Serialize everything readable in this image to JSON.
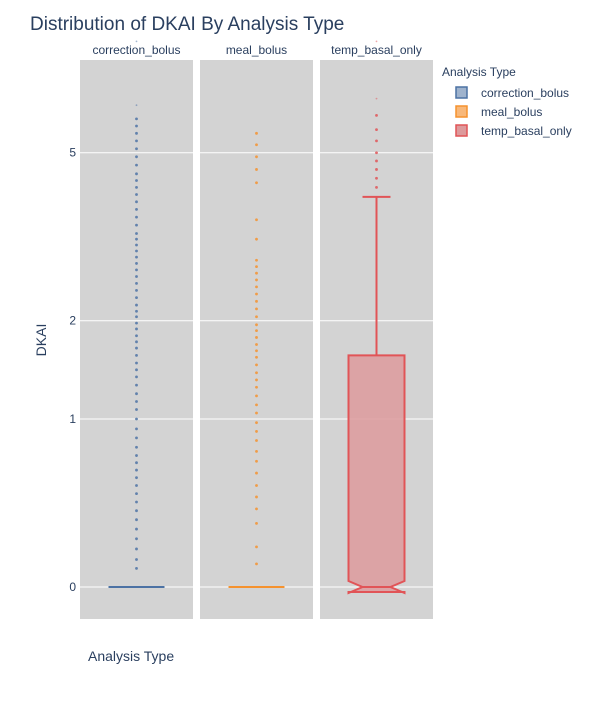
{
  "chart_data": {
    "type": "box",
    "title": "Distribution of DKAI By Analysis Type",
    "xlabel": "Analysis Type",
    "ylabel": "DKAI",
    "y_scale": "symlog",
    "yticks": [
      0,
      1,
      2,
      5
    ],
    "ylim": [
      -0.1,
      10.5
    ],
    "grid": true,
    "facet_titles": [
      "correction_bolus",
      "meal_bolus",
      "temp_basal_only"
    ],
    "legend": {
      "title": "Analysis Type",
      "placement": "top-right",
      "entries": [
        "correction_bolus",
        "meal_bolus",
        "temp_basal_only"
      ]
    },
    "series": [
      {
        "name": "correction_bolus",
        "color": "#4c72a4",
        "fill": "#9fb3cd",
        "box": {
          "q1": 0,
          "median": 0,
          "q3": 0,
          "lower_fence": 0,
          "upper_fence": 0,
          "notched": false
        },
        "outliers": [
          0.08,
          0.12,
          0.17,
          0.22,
          0.27,
          0.32,
          0.37,
          0.42,
          0.47,
          0.52,
          0.57,
          0.62,
          0.67,
          0.72,
          0.78,
          0.85,
          0.92,
          1.0,
          1.08,
          1.15,
          1.22,
          1.3,
          1.38,
          1.45,
          1.52,
          1.6,
          1.68,
          1.75,
          1.82,
          1.9,
          1.97,
          2.05,
          2.12,
          2.2,
          2.3,
          2.4,
          2.5,
          2.6,
          2.7,
          2.8,
          2.9,
          3.0,
          3.1,
          3.2,
          3.3,
          3.45,
          3.6,
          3.75,
          3.9,
          4.05,
          4.2,
          4.35,
          4.5,
          4.7,
          4.9,
          5.1,
          5.3,
          5.5,
          5.7,
          5.9,
          6.3,
          8.5
        ]
      },
      {
        "name": "meal_bolus",
        "color": "#f5922e",
        "fill": "#f8b87a",
        "box": {
          "q1": 0,
          "median": 0,
          "q3": 0,
          "lower_fence": 0,
          "upper_fence": 0,
          "notched": false
        },
        "outliers": [
          0.1,
          0.18,
          0.3,
          0.38,
          0.45,
          0.52,
          0.6,
          0.68,
          0.75,
          0.83,
          0.9,
          0.97,
          1.05,
          1.12,
          1.2,
          1.28,
          1.35,
          1.42,
          1.5,
          1.58,
          1.65,
          1.72,
          1.8,
          1.88,
          1.95,
          2.05,
          2.15,
          2.25,
          2.35,
          2.45,
          2.55,
          2.65,
          2.75,
          2.85,
          3.2,
          3.55,
          4.3,
          4.6,
          4.9,
          5.2,
          5.5
        ]
      },
      {
        "name": "temp_basal_only",
        "color": "#e15457",
        "fill": "#dd9a9c",
        "box": {
          "q1": 0,
          "median": 0,
          "q3": 1.6,
          "lower_fence": 0,
          "upper_fence": 4.0,
          "notched": true
        },
        "outliers": [
          4.2,
          4.4,
          4.6,
          4.8,
          5.0,
          5.3,
          5.6,
          6.0,
          6.5,
          8.5
        ]
      }
    ]
  }
}
